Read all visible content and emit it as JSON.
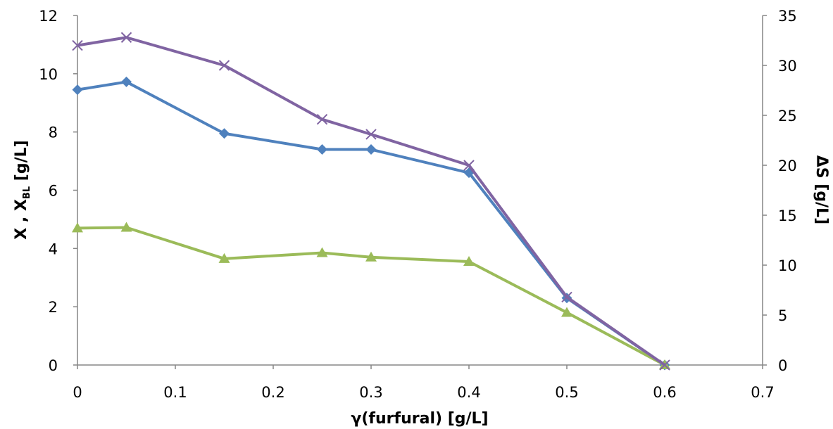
{
  "chart_data": {
    "type": "line",
    "xlabel": "γ(furfural) [g/L]",
    "ylabel": {
      "main": "X , X",
      "sub": "BL",
      "unit": " [g/L]"
    },
    "y2label": "ΔS [g/L]",
    "xlim": [
      0,
      0.7
    ],
    "ylim": [
      0,
      12
    ],
    "y2lim": [
      0,
      35
    ],
    "xticks": [
      "0",
      "0.1",
      "0.2",
      "0.3",
      "0.4",
      "0.5",
      "0.6",
      "0.7"
    ],
    "yticks": [
      "0",
      "2",
      "4",
      "6",
      "8",
      "10",
      "12"
    ],
    "y2ticks": [
      "0",
      "5",
      "10",
      "15",
      "20",
      "25",
      "30",
      "35"
    ],
    "grid": false,
    "legend": "none",
    "series": [
      {
        "axis": "left",
        "marker": "diamond",
        "color": "#4f81bd",
        "x": [
          0,
          0.05,
          0.15,
          0.25,
          0.3,
          0.4,
          0.5,
          0.6
        ],
        "y": [
          9.45,
          9.72,
          7.95,
          7.4,
          7.4,
          6.6,
          2.3,
          0
        ]
      },
      {
        "axis": "left",
        "marker": "triangle",
        "color": "#9bbb59",
        "x": [
          0,
          0.05,
          0.15,
          0.25,
          0.3,
          0.4,
          0.5,
          0.6
        ],
        "y": [
          4.7,
          4.72,
          3.65,
          3.85,
          3.7,
          3.55,
          1.8,
          0
        ]
      },
      {
        "axis": "right",
        "marker": "x",
        "color": "#8064a2",
        "x": [
          0,
          0.05,
          0.15,
          0.25,
          0.3,
          0.4,
          0.5,
          0.6
        ],
        "y": [
          32,
          32.8,
          30,
          24.6,
          23.1,
          20,
          6.8,
          0
        ]
      }
    ]
  }
}
